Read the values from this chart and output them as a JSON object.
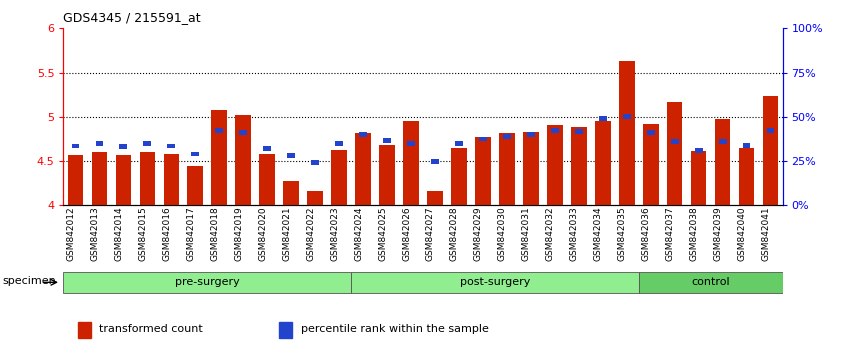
{
  "title": "GDS4345 / 215591_at",
  "samples": [
    "GSM842012",
    "GSM842013",
    "GSM842014",
    "GSM842015",
    "GSM842016",
    "GSM842017",
    "GSM842018",
    "GSM842019",
    "GSM842020",
    "GSM842021",
    "GSM842022",
    "GSM842023",
    "GSM842024",
    "GSM842025",
    "GSM842026",
    "GSM842027",
    "GSM842028",
    "GSM842029",
    "GSM842030",
    "GSM842031",
    "GSM842032",
    "GSM842033",
    "GSM842034",
    "GSM842035",
    "GSM842036",
    "GSM842037",
    "GSM842038",
    "GSM842039",
    "GSM842040",
    "GSM842041"
  ],
  "red_values": [
    4.57,
    4.6,
    4.57,
    4.6,
    4.58,
    4.44,
    5.08,
    5.02,
    4.58,
    4.28,
    4.16,
    4.62,
    4.82,
    4.68,
    4.95,
    4.16,
    4.65,
    4.77,
    4.82,
    4.83,
    4.91,
    4.88,
    4.95,
    5.63,
    4.92,
    5.17,
    4.61,
    4.98,
    4.65,
    5.24
  ],
  "blue_values": [
    4.67,
    4.7,
    4.66,
    4.7,
    4.67,
    4.58,
    4.85,
    4.82,
    4.64,
    4.56,
    4.48,
    4.7,
    4.8,
    4.73,
    4.7,
    4.5,
    4.7,
    4.75,
    4.78,
    4.8,
    4.85,
    4.83,
    4.98,
    5.0,
    4.82,
    4.72,
    4.62,
    4.72,
    4.68,
    4.85
  ],
  "groups": [
    {
      "label": "pre-surgery",
      "start": 0,
      "end": 12,
      "color": "#90EE90"
    },
    {
      "label": "post-surgery",
      "start": 12,
      "end": 24,
      "color": "#90EE90"
    },
    {
      "label": "control",
      "start": 24,
      "end": 30,
      "color": "#66CC66"
    }
  ],
  "ylim": [
    4.0,
    6.0
  ],
  "ytick_vals": [
    4.0,
    4.5,
    5.0,
    5.5,
    6.0
  ],
  "ytick_labels": [
    "4",
    "4.5",
    "5",
    "5.5",
    "6"
  ],
  "y2ticks": [
    0,
    25,
    50,
    75,
    100
  ],
  "y2labels": [
    "0%",
    "25%",
    "50%",
    "75%",
    "100%"
  ],
  "dotted_lines": [
    4.5,
    5.0,
    5.5
  ],
  "bar_color": "#CC2200",
  "blue_color": "#2244CC",
  "bar_width": 0.65,
  "specimen_label": "specimen",
  "legend_items": [
    {
      "label": "transformed count",
      "color": "#CC2200"
    },
    {
      "label": "percentile rank within the sample",
      "color": "#2244CC"
    }
  ]
}
